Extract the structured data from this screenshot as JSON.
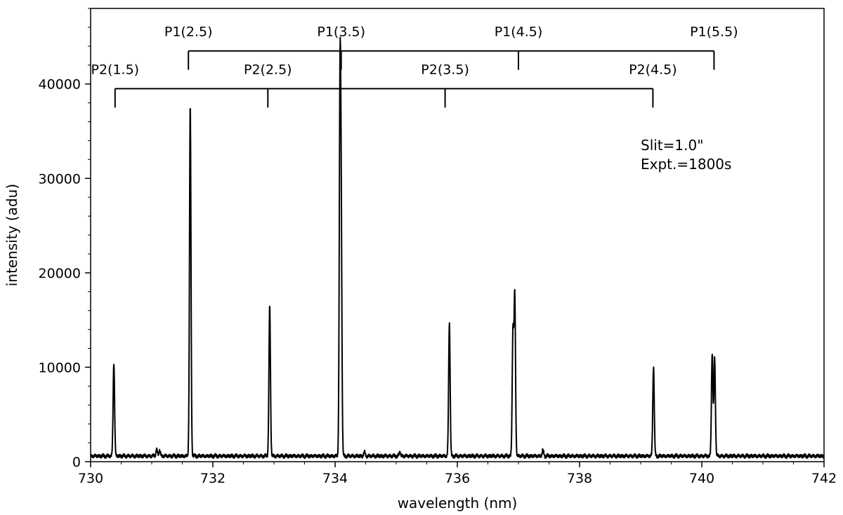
{
  "chart_data": {
    "type": "line",
    "xlabel": "wavelength (nm)",
    "ylabel": "intensity (adu)",
    "xlim": [
      730,
      742
    ],
    "ylim": [
      0,
      48000
    ],
    "x_ticks": [
      730,
      732,
      734,
      736,
      738,
      740,
      742
    ],
    "x_tick_labels": [
      "730",
      "732",
      "734",
      "736",
      "738",
      "740",
      "742"
    ],
    "x_minor_step": 0.5,
    "y_ticks": [
      0,
      10000,
      20000,
      30000,
      40000
    ],
    "y_tick_labels": [
      "0",
      "10000",
      "20000",
      "30000",
      "40000"
    ],
    "y_minor_step": 2000,
    "grid": false,
    "baseline": 600,
    "series": [
      {
        "color": "#000000",
        "peaks": [
          {
            "x": 730.38,
            "y": 10500
          },
          {
            "x": 731.08,
            "y": 1300
          },
          {
            "x": 731.13,
            "y": 1200
          },
          {
            "x": 731.63,
            "y": 37700
          },
          {
            "x": 732.93,
            "y": 16500
          },
          {
            "x": 734.08,
            "y": 37600
          },
          {
            "x": 734.1,
            "y": 23000
          },
          {
            "x": 734.48,
            "y": 1000
          },
          {
            "x": 735.06,
            "y": 1000
          },
          {
            "x": 735.87,
            "y": 14800
          },
          {
            "x": 736.91,
            "y": 13800
          },
          {
            "x": 736.94,
            "y": 17500
          },
          {
            "x": 737.4,
            "y": 1200
          },
          {
            "x": 739.21,
            "y": 10100
          },
          {
            "x": 740.17,
            "y": 11500
          },
          {
            "x": 740.21,
            "y": 11100
          }
        ]
      }
    ],
    "brackets": [
      {
        "label_y": 45500,
        "bar_y": 43500,
        "tick_bottom": 41500,
        "x_range": [
          731.6,
          740.2
        ],
        "labels": [
          {
            "x": 731.6,
            "text": "P1(2.5)"
          },
          {
            "x": 734.1,
            "text": "P1(3.5)"
          },
          {
            "x": 737.0,
            "text": "P1(4.5)"
          },
          {
            "x": 740.2,
            "text": "P1(5.5)"
          }
        ]
      },
      {
        "label_y": 41500,
        "bar_y": 39500,
        "tick_bottom": 37500,
        "x_range": [
          730.4,
          739.2
        ],
        "labels": [
          {
            "x": 730.4,
            "text": "P2(1.5)"
          },
          {
            "x": 732.9,
            "text": "P2(2.5)"
          },
          {
            "x": 735.8,
            "text": "P2(3.5)"
          },
          {
            "x": 739.2,
            "text": "P2(4.5)"
          }
        ]
      }
    ],
    "annotations": [
      {
        "x": 739.0,
        "y": 33000,
        "text": "Slit=1.0\""
      },
      {
        "x": 739.0,
        "y": 31000,
        "text": "Expt.=1800s"
      }
    ]
  }
}
